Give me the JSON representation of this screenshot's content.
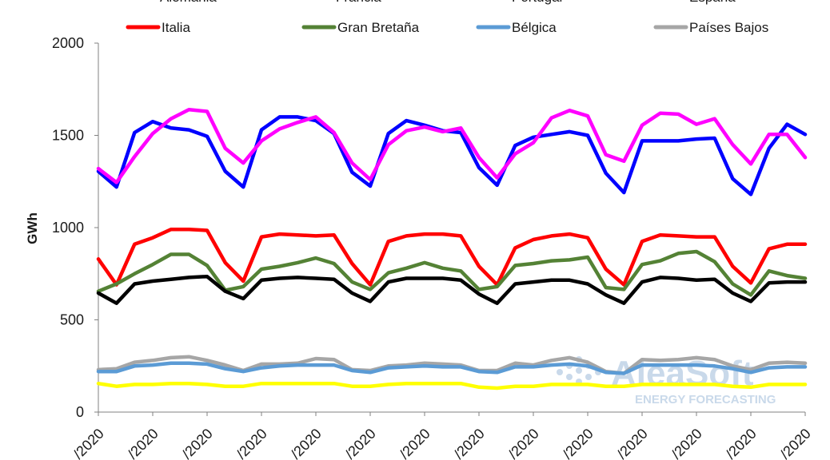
{
  "chart_data": {
    "type": "line",
    "title": "",
    "xlabel": "",
    "ylabel": "GWh",
    "ylim": [
      0,
      2000
    ],
    "yticks": [
      "0",
      "500",
      "1000",
      "1500",
      "2000"
    ],
    "grid": false,
    "legend_position": "top",
    "x_tick_labels": [
      "/2020",
      "/2020",
      "/2020",
      "/2020",
      "/2020",
      "/2020",
      "/2020",
      "/2020",
      "/2020",
      "/2020",
      "/2020",
      "/2020",
      "/2020",
      "/2020"
    ],
    "legend_top_row_partial": [
      "Alemania",
      "Francia",
      "Portugal",
      "España"
    ],
    "series": [
      {
        "name": "Alemania",
        "color": "#0000ff",
        "values": [
          1305,
          1220,
          1515,
          1575,
          1540,
          1530,
          1495,
          1305,
          1220,
          1530,
          1600,
          1600,
          1580,
          1510,
          1300,
          1225,
          1510,
          1580,
          1555,
          1525,
          1515,
          1325,
          1230,
          1445,
          1490,
          1505,
          1520,
          1500,
          1295,
          1190,
          1470,
          1470,
          1470,
          1480,
          1485,
          1265,
          1180,
          1430,
          1560,
          1505
        ]
      },
      {
        "name": "Francia",
        "color": "#ff00ff",
        "values": [
          1320,
          1245,
          1385,
          1510,
          1590,
          1640,
          1630,
          1430,
          1350,
          1470,
          1535,
          1570,
          1600,
          1515,
          1350,
          1260,
          1450,
          1525,
          1545,
          1520,
          1540,
          1380,
          1270,
          1400,
          1460,
          1595,
          1635,
          1605,
          1395,
          1360,
          1555,
          1620,
          1615,
          1560,
          1590,
          1450,
          1345,
          1505,
          1505,
          1380
        ]
      },
      {
        "name": "Italia",
        "color": "#ff0000",
        "values": [
          830,
          690,
          910,
          945,
          990,
          990,
          985,
          810,
          710,
          950,
          965,
          960,
          955,
          960,
          805,
          690,
          925,
          955,
          965,
          965,
          955,
          790,
          690,
          890,
          935,
          955,
          965,
          945,
          775,
          690,
          925,
          960,
          955,
          950,
          950,
          790,
          700,
          885,
          910,
          910
        ]
      },
      {
        "name": "Gran Bretaña",
        "color": "#548235",
        "values": [
          655,
          695,
          750,
          800,
          855,
          855,
          795,
          660,
          680,
          775,
          790,
          810,
          835,
          805,
          705,
          665,
          755,
          780,
          810,
          780,
          765,
          665,
          680,
          795,
          805,
          820,
          825,
          840,
          675,
          665,
          800,
          820,
          860,
          870,
          815,
          695,
          635,
          765,
          740,
          725
        ]
      },
      {
        "name": "España",
        "color": "#000000",
        "values": [
          645,
          590,
          695,
          710,
          720,
          730,
          735,
          655,
          615,
          715,
          725,
          730,
          725,
          720,
          645,
          600,
          705,
          725,
          725,
          725,
          715,
          640,
          590,
          695,
          705,
          715,
          715,
          695,
          635,
          590,
          705,
          730,
          725,
          715,
          720,
          645,
          600,
          700,
          705,
          705
        ]
      },
      {
        "name": "Países Bajos",
        "color": "#a6a6a6",
        "values": [
          230,
          235,
          270,
          280,
          295,
          300,
          280,
          255,
          225,
          260,
          260,
          265,
          290,
          285,
          230,
          225,
          250,
          255,
          265,
          260,
          255,
          225,
          225,
          265,
          255,
          280,
          295,
          270,
          220,
          210,
          285,
          280,
          285,
          295,
          285,
          250,
          230,
          265,
          270,
          265
        ]
      },
      {
        "name": "Bélgica",
        "color": "#5b9bd5",
        "values": [
          220,
          220,
          250,
          255,
          265,
          265,
          260,
          235,
          220,
          240,
          250,
          255,
          255,
          255,
          225,
          215,
          240,
          245,
          250,
          245,
          245,
          220,
          215,
          245,
          245,
          255,
          260,
          250,
          215,
          210,
          255,
          255,
          255,
          255,
          250,
          235,
          215,
          240,
          245,
          245
        ]
      },
      {
        "name": "Portugal",
        "color": "#ffff00",
        "values": [
          155,
          140,
          150,
          150,
          155,
          155,
          150,
          140,
          140,
          155,
          155,
          155,
          155,
          155,
          140,
          140,
          150,
          155,
          155,
          155,
          155,
          135,
          130,
          140,
          140,
          150,
          150,
          150,
          140,
          140,
          150,
          150,
          150,
          150,
          150,
          140,
          135,
          150,
          150,
          150
        ]
      }
    ]
  },
  "watermark": {
    "brand": "AleaSoft",
    "tagline": "ENERGY FORECASTING"
  }
}
